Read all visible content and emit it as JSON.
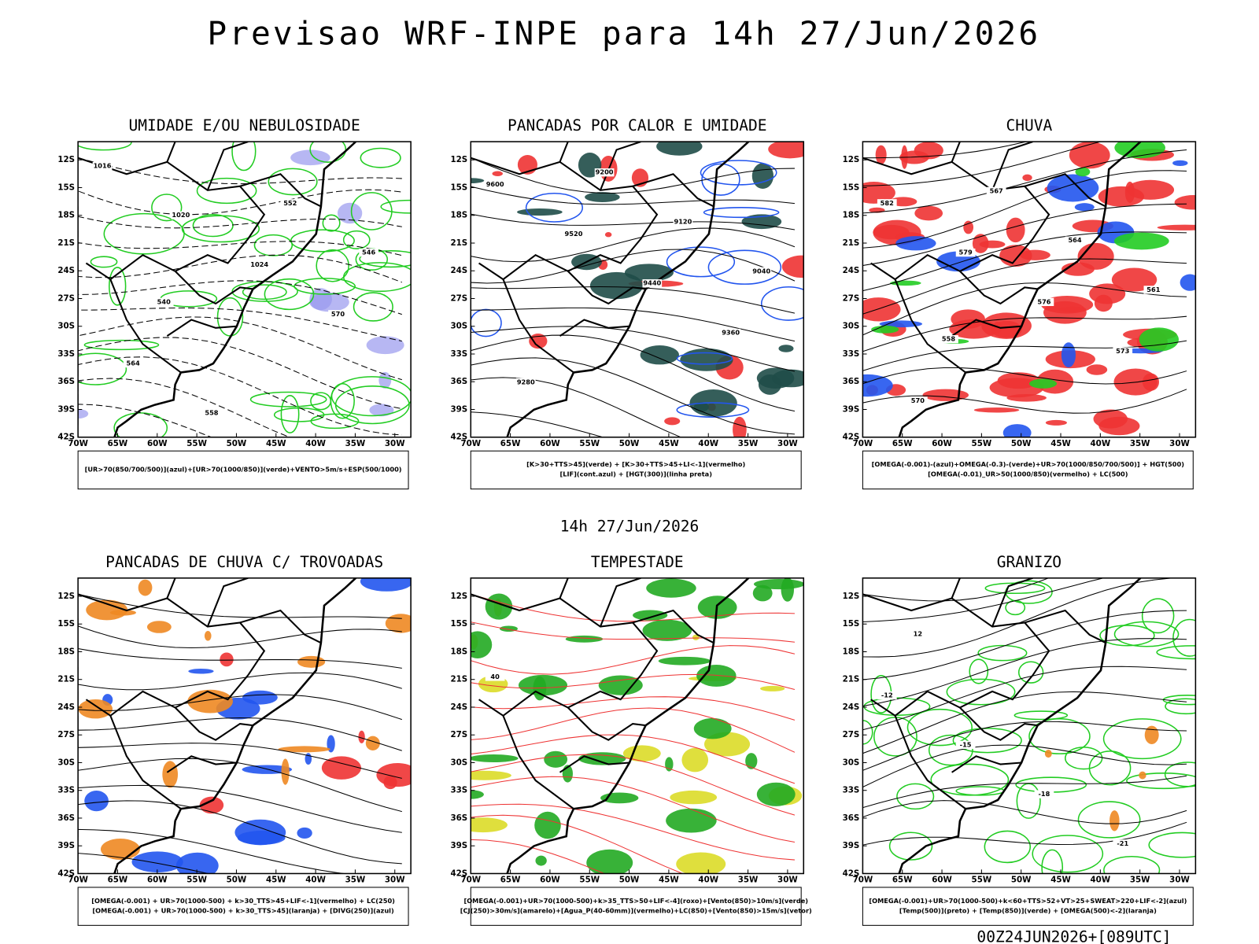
{
  "title": "Previsao WRF-INPE  para 14h 27/Jun/2026",
  "subtitle": "14h 27/Jun/2026",
  "footer": "00Z24JUN2026+[089UTC]",
  "lat_labels": [
    "12S",
    "15S",
    "18S",
    "21S",
    "24S",
    "27S",
    "30S",
    "33S",
    "36S",
    "39S",
    "42S"
  ],
  "lon_labels": [
    "70W",
    "65W",
    "60W",
    "55W",
    "50W",
    "45W",
    "40W",
    "35W",
    "30W"
  ],
  "panels": [
    {
      "title": "UMIDADE E/OU NEBULOSIDADE",
      "legend": [
        "[UR>70(850/700/500)](azul)+[UR>70(1000/850)](verde)+VENTO>5m/s+ESP(500/1000)"
      ],
      "contour_labels": [
        "1016",
        "1020",
        "1024",
        "570",
        "564",
        "558",
        "552",
        "546",
        "540"
      ]
    },
    {
      "title": "PANCADAS POR CALOR E UMIDADE",
      "legend": [
        "[K>30+TTS>45](verde) + [K>30+TTS>45+LI<-1](vermelho)",
        "[LIF](cont.azul) + [HGT(300)](linha preta)"
      ],
      "contour_labels": [
        "9600",
        "9520",
        "9440",
        "9360",
        "9280",
        "9200",
        "9120",
        "9040"
      ]
    },
    {
      "title": "CHUVA",
      "legend": [
        "[OMEGA(-0.001)-(azul)+OMEGA(-0.3)-(verde)+UR>70(1000/850/700/500)] + HGT(500)",
        "[OMEGA(-0.01)_UR>50(1000/850)(vermelho) + LC(500)"
      ],
      "contour_labels": [
        "582",
        "579",
        "576",
        "573",
        "570",
        "567",
        "564",
        "561",
        "558"
      ]
    },
    {
      "title": "PANCADAS DE CHUVA C/ TROVOADAS",
      "legend": [
        "[OMEGA(-0.001) + UR>70(1000-500) + k>30_TTS>45+LIF<-1](vermelho) + LC(250)",
        "[OMEGA(-0.001) + UR>70(1000-500) + k>30_TTS>45](laranja) + [DIVG(250)](azul)"
      ],
      "contour_labels": []
    },
    {
      "title": "TEMPESTADE",
      "legend": [
        "[OMEGA(-0.001)+UR>70(1000-500)+k>35_TTS>50+LIF<-4](roxo)+[Vento(850)>10m/s](verde)",
        "[CJ(250)>30m/s](amarelo)+[Agua_P(40-60mm)](vermelho)+LC(850)+[Vento(850)>15m/s](vetor)"
      ],
      "contour_labels": [
        "40"
      ]
    },
    {
      "title": "GRANIZO",
      "legend": [
        "[OMEGA(-0.001)+UR>70(1000-500)+k<60+TTS>52+VT>25+SWEAT>220+LIF<-2](azul)",
        "[Temp(500)](preto) + [Temp(850)](verde) + [OMEGA(500)<-2](laranja)"
      ],
      "contour_labels": [
        "-12",
        "-15",
        "-18",
        "-21",
        "12"
      ]
    }
  ]
}
